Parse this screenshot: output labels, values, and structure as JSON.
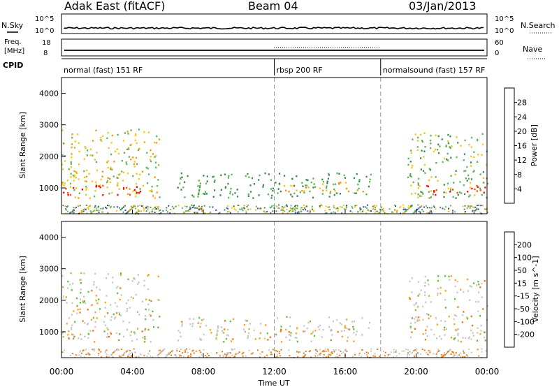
{
  "header": {
    "title": "Adak East (fitACF)",
    "beam": "Beam 04",
    "date": "03/Jan/2013"
  },
  "top_panels": {
    "nsky_label": "N.Sky",
    "nsearch_label": "N.Search",
    "nsky_ticks": [
      "10^5",
      "10^0"
    ],
    "nsearch_ticks": [
      "10^5",
      "10^0"
    ],
    "freq_label_1": "Freq.",
    "freq_label_2": "[MHz]",
    "freq_ticks": [
      "18",
      "8"
    ],
    "nave_label": "Nave",
    "nave_ticks": [
      "60",
      "0"
    ],
    "cpid_label": "CPID",
    "cpid_segments": [
      {
        "label": "normal (fast) 151 RF",
        "start_hour": 0
      },
      {
        "label": "rbsp 200 RF",
        "start_hour": 12
      },
      {
        "label": "normalsound (fast) 157 RF",
        "start_hour": 18
      }
    ]
  },
  "colors": {
    "power_scale": [
      "#0000ff",
      "#2a48a8",
      "#3e8a52",
      "#5fb55a",
      "#f5c518",
      "#f29a0c",
      "#f2560c",
      "#ff0000"
    ],
    "velocity_scale": [
      "#ff0000",
      "#ee3322",
      "#f07a10",
      "#f6a623",
      "#c8c8c8",
      "#c8c8c8",
      "#60c040",
      "#2f8a48",
      "#1f5c9c",
      "#1b2f9e"
    ],
    "ground_scatter": "#c8c8c8"
  },
  "chart_data": [
    {
      "type": "heatmap",
      "panel": "power",
      "ylabel": "Slant Range [km]",
      "yticks": [
        "1000",
        "2000",
        "3000",
        "4000"
      ],
      "ylim": [
        180,
        4500
      ],
      "colorbar_label": "Power [dB]",
      "colorbar_ticks": [
        "28",
        "24",
        "20",
        "16",
        "12",
        "8",
        "4"
      ],
      "colorbar_range": [
        0,
        32
      ],
      "vertical_dashed_lines_hours": [
        12,
        18
      ],
      "echo_regions": [
        {
          "t_start": 0.0,
          "t_end": 5.5,
          "r_start": 700,
          "r_end": 2900,
          "power": 18
        },
        {
          "t_start": 0.0,
          "t_end": 4.5,
          "r_start": 800,
          "r_end": 1100,
          "power": 30
        },
        {
          "t_start": 6.5,
          "t_end": 17.5,
          "r_start": 700,
          "r_end": 1500,
          "power": 12
        },
        {
          "t_start": 12.5,
          "t_end": 17.0,
          "r_start": 900,
          "r_end": 1200,
          "power": 20
        },
        {
          "t_start": 19.5,
          "t_end": 24.0,
          "r_start": 700,
          "r_end": 2800,
          "power": 14
        },
        {
          "t_start": 20.5,
          "t_end": 24.0,
          "r_start": 800,
          "r_end": 1100,
          "power": 30
        }
      ]
    },
    {
      "type": "heatmap",
      "panel": "velocity",
      "ylabel": "Slant Range [km]",
      "yticks": [
        "1000",
        "2000",
        "3000",
        "4000"
      ],
      "ylim": [
        180,
        4500
      ],
      "colorbar_label": "Velocity [m s^-1]",
      "colorbar_ticks": [
        "200",
        "100",
        "50",
        "15",
        "-15",
        "-50",
        "-100",
        "-200"
      ],
      "colorbar_range": [
        -250,
        250
      ],
      "vertical_dashed_lines_hours": [
        12,
        18
      ],
      "xlabel": "Time UT",
      "xticks": [
        "00:00",
        "04:00",
        "08:00",
        "12:00",
        "16:00",
        "20:00",
        "00:00"
      ],
      "xlim_hours": [
        0,
        24
      ]
    }
  ]
}
